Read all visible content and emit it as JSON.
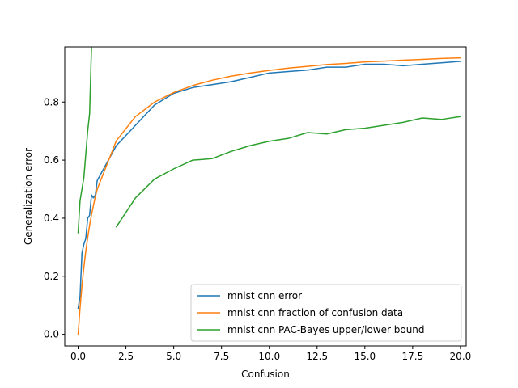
{
  "chart_data": {
    "type": "line",
    "xlabel": "Confusion",
    "ylabel": "Generalization error",
    "xlim": [
      -0.7,
      20.3
    ],
    "ylim": [
      -0.04,
      0.99
    ],
    "xticks": [
      0.0,
      2.5,
      5.0,
      7.5,
      10.0,
      12.5,
      15.0,
      17.5,
      20.0
    ],
    "xtick_labels": [
      "0.0",
      "2.5",
      "5.0",
      "7.5",
      "10.0",
      "12.5",
      "15.0",
      "17.5",
      "20.0"
    ],
    "yticks": [
      0.0,
      0.2,
      0.4,
      0.6,
      0.8
    ],
    "ytick_labels": [
      "0.0",
      "0.2",
      "0.4",
      "0.6",
      "0.8"
    ],
    "grid": false,
    "legend_position": "lower-right",
    "series": [
      {
        "name": "mnist cnn error",
        "color": "#1f77b4",
        "x": [
          0.0,
          0.1,
          0.2,
          0.3,
          0.4,
          0.5,
          0.6,
          0.7,
          0.8,
          0.9,
          1.0,
          2.0,
          3.0,
          4.0,
          5.0,
          6.0,
          7.0,
          8.0,
          9.0,
          10.0,
          11.0,
          12.0,
          13.0,
          14.0,
          15.0,
          16.0,
          17.0,
          18.0,
          19.0,
          20.0
        ],
        "y": [
          0.09,
          0.13,
          0.28,
          0.31,
          0.33,
          0.4,
          0.41,
          0.48,
          0.47,
          0.48,
          0.53,
          0.65,
          0.72,
          0.79,
          0.83,
          0.85,
          0.86,
          0.87,
          0.885,
          0.9,
          0.905,
          0.91,
          0.92,
          0.92,
          0.93,
          0.93,
          0.925,
          0.93,
          0.935,
          0.94
        ]
      },
      {
        "name": "mnist cnn fraction of confusion data",
        "color": "#ff7f0e",
        "x": [
          0.0,
          0.1,
          0.2,
          0.3,
          0.4,
          0.5,
          0.6,
          0.7,
          0.8,
          0.9,
          1.0,
          2.0,
          3.0,
          4.0,
          5.0,
          6.0,
          7.0,
          8.0,
          9.0,
          10.0,
          11.0,
          12.0,
          13.0,
          14.0,
          15.0,
          16.0,
          17.0,
          18.0,
          19.0,
          20.0
        ],
        "y": [
          0.0,
          0.091,
          0.167,
          0.231,
          0.286,
          0.333,
          0.375,
          0.412,
          0.444,
          0.474,
          0.5,
          0.667,
          0.75,
          0.8,
          0.833,
          0.857,
          0.875,
          0.889,
          0.9,
          0.909,
          0.917,
          0.923,
          0.929,
          0.933,
          0.938,
          0.941,
          0.944,
          0.947,
          0.95,
          0.952
        ]
      },
      {
        "name": "mnist cnn PAC-Bayes upper/lower bound",
        "color": "#2ca02c",
        "segments": [
          {
            "x": [
              0.0,
              0.1,
              0.2,
              0.3,
              0.4,
              0.5,
              0.6,
              0.7,
              0.8
            ],
            "y": [
              0.35,
              0.46,
              0.5,
              0.54,
              0.62,
              0.7,
              0.76,
              0.99,
              1.1
            ]
          },
          {
            "x": [
              2.0,
              3.0,
              4.0,
              5.0,
              6.0,
              7.0,
              8.0,
              9.0,
              10.0,
              11.0,
              12.0,
              13.0,
              14.0,
              15.0,
              16.0,
              17.0,
              18.0,
              19.0,
              20.0
            ],
            "y": [
              0.37,
              0.47,
              0.535,
              0.57,
              0.6,
              0.605,
              0.63,
              0.65,
              0.665,
              0.675,
              0.695,
              0.69,
              0.705,
              0.71,
              0.72,
              0.73,
              0.745,
              0.74,
              0.75
            ]
          }
        ]
      }
    ]
  }
}
